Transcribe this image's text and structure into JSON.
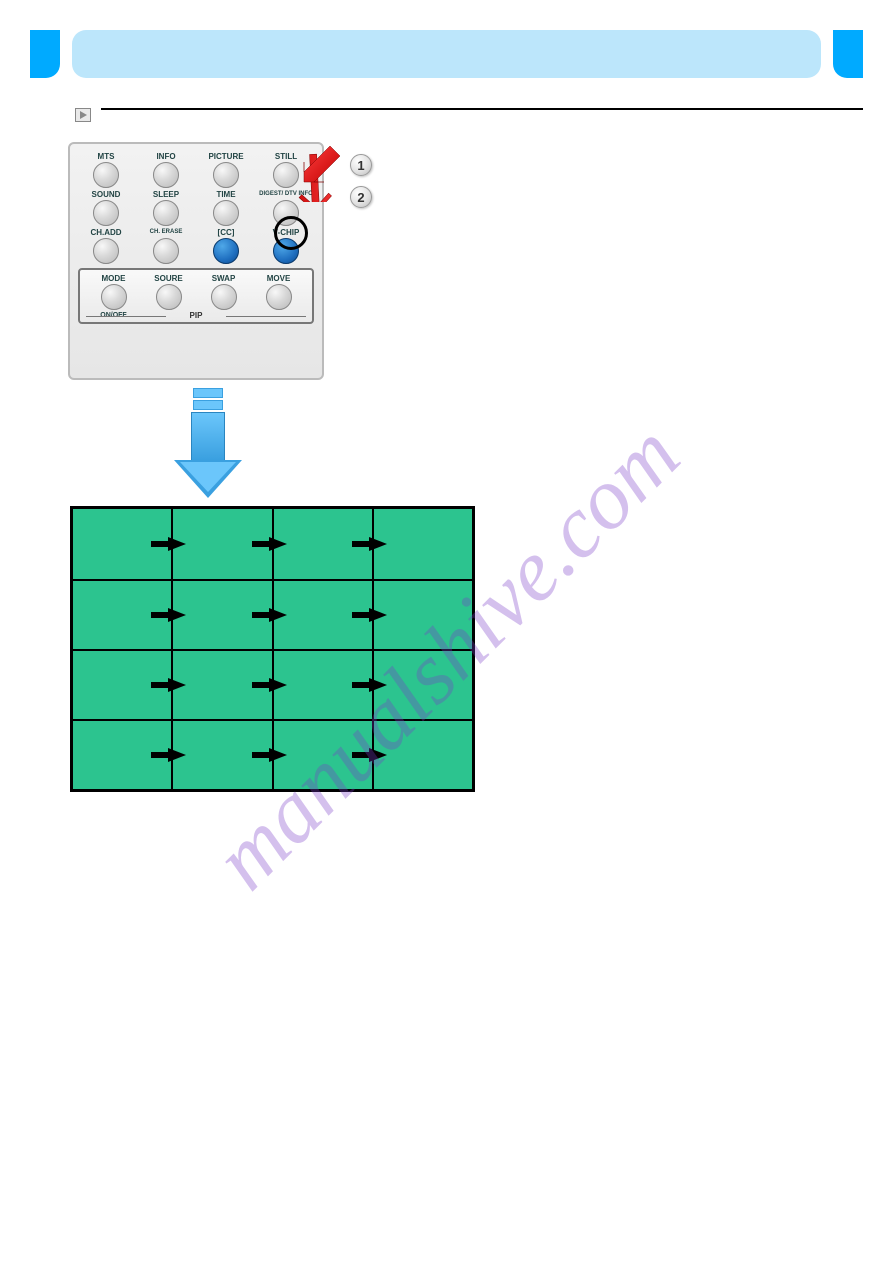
{
  "banner": {
    "chapter": "",
    "subtitle": "",
    "side_color": "#00aaff",
    "mid_color": "#bce6fb"
  },
  "section": {
    "title": "",
    "description": ""
  },
  "remote": {
    "rows": [
      [
        {
          "label": "MTS",
          "type": "grey"
        },
        {
          "label": "INFO",
          "type": "grey"
        },
        {
          "label": "PICTURE",
          "type": "grey"
        },
        {
          "label": "STILL",
          "type": "grey"
        }
      ],
      [
        {
          "label": "SOUND",
          "type": "grey"
        },
        {
          "label": "SLEEP",
          "type": "grey"
        },
        {
          "label": "TIME",
          "type": "grey"
        },
        {
          "label": "DIGEST/\nDTV INFO",
          "type": "grey",
          "highlight": true
        }
      ],
      [
        {
          "label": "CH.ADD",
          "type": "grey"
        },
        {
          "label": "CH. ERASE",
          "type": "grey"
        },
        {
          "label": "[CC]",
          "type": "blue"
        },
        {
          "label": "V-CHIP",
          "type": "blue"
        }
      ]
    ],
    "pip": {
      "row": [
        {
          "label": "MODE",
          "type": "grey",
          "sub": "ON/OFF"
        },
        {
          "label": "SOURE",
          "type": "grey",
          "sub": ""
        },
        {
          "label": "SWAP",
          "type": "grey",
          "sub": ""
        },
        {
          "label": "MOVE",
          "type": "grey",
          "sub": ""
        }
      ],
      "footer": "PIP"
    }
  },
  "steps": {
    "items": [
      {
        "num": "1",
        "text": ""
      },
      {
        "num": "2",
        "text": ""
      }
    ]
  },
  "grid": {
    "rows": 4,
    "cols": 4,
    "cell_color": "#2cc48f",
    "border_color": "#000000"
  },
  "note": "",
  "watermark": "manualshive.com",
  "page_number": ""
}
